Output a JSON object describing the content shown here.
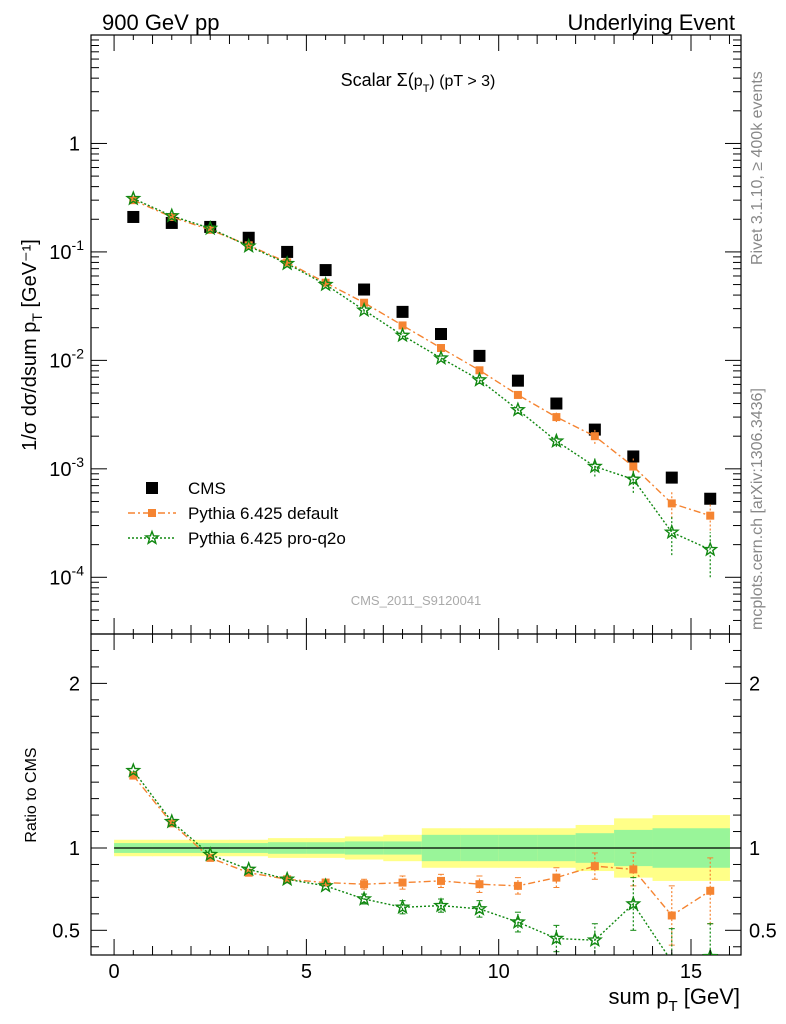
{
  "header": {
    "left": "900 GeV pp",
    "right": "Underlying Event"
  },
  "side_labels": {
    "rivet": "Rivet 3.1.10, ≥ 400k events",
    "mcplots": "mcplots.cern.ch [arXiv:1306.3436]"
  },
  "chart_data": [
    {
      "type": "scatter",
      "title": "Scalar Σ(p_T) (pT > 3)",
      "ylabel": "1/σ dσ/dsum p_T [GeV⁻¹]",
      "xlabel": "",
      "yscale": "log",
      "xlim": [
        -0.6,
        16.3
      ],
      "ylim": [
        3e-05,
        10
      ],
      "yticks_major": [
        0.0001,
        0.001,
        0.01,
        0.1,
        1
      ],
      "ytick_labels": [
        "10^-4",
        "10^-3",
        "10^-2",
        "10^-1",
        "1"
      ],
      "watermark": "CMS_2011_S9120041",
      "legend_position": "bottom-left",
      "x": [
        0.5,
        1.5,
        2.5,
        3.5,
        4.5,
        5.5,
        6.5,
        7.5,
        8.5,
        9.5,
        10.5,
        11.5,
        12.5,
        13.5,
        14.5,
        15.5
      ],
      "series": [
        {
          "name": "CMS",
          "color": "#000000",
          "marker": "square",
          "line": "none",
          "values": [
            0.21,
            0.185,
            0.17,
            0.135,
            0.1,
            0.068,
            0.045,
            0.028,
            0.0175,
            0.011,
            0.0065,
            0.004,
            0.0023,
            0.0013,
            0.00083,
            0.00053
          ]
        },
        {
          "name": "Pythia 6.425 default",
          "color": "#f58431",
          "marker": "square-small",
          "line": "dashdot",
          "values": [
            0.3,
            0.21,
            0.16,
            0.115,
            0.08,
            0.052,
            0.034,
            0.021,
            0.013,
            0.0081,
            0.0048,
            0.003,
            0.002,
            0.00105,
            0.00048,
            0.00037
          ],
          "errors": [
            0,
            0,
            0,
            0,
            0,
            0,
            0,
            0.001,
            0.0008,
            0.0005,
            0.0003,
            0.0003,
            0.0003,
            0.0002,
            0.00013,
            0.0001
          ]
        },
        {
          "name": "Pythia 6.425 pro-q2o",
          "color": "#118811",
          "marker": "star",
          "line": "dotted",
          "values": [
            0.31,
            0.215,
            0.165,
            0.113,
            0.078,
            0.05,
            0.029,
            0.017,
            0.0105,
            0.0066,
            0.0035,
            0.0018,
            0.00105,
            0.0008,
            0.00026,
            0.00018
          ],
          "errors": [
            0,
            0,
            0,
            0,
            0,
            0,
            0.001,
            0.0008,
            0.0006,
            0.0004,
            0.0003,
            0.0002,
            0.0002,
            0.0002,
            0.0001,
            8e-05
          ]
        }
      ]
    },
    {
      "type": "line",
      "ylabel": "Ratio to CMS",
      "xlabel": "sum p_T [GeV]",
      "xlim": [
        -0.6,
        16.3
      ],
      "ylim": [
        0.35,
        2.3
      ],
      "xticks": [
        0,
        5,
        10,
        15
      ],
      "yticks": [
        0.5,
        1,
        2
      ],
      "reference_line": 1,
      "x": [
        0.5,
        1.5,
        2.5,
        3.5,
        4.5,
        5.5,
        6.5,
        7.5,
        8.5,
        9.5,
        10.5,
        11.5,
        12.5,
        13.5,
        14.5,
        15.5
      ],
      "bands": {
        "bins_x": [
          0,
          1,
          2,
          3,
          4,
          5,
          6,
          7,
          8,
          9,
          10,
          11,
          12,
          13,
          14,
          15,
          16
        ],
        "stat_color": "#99f599",
        "total_color": "#ffff88",
        "stat_halfwidth": [
          0.03,
          0.03,
          0.03,
          0.03,
          0.035,
          0.035,
          0.04,
          0.04,
          0.08,
          0.08,
          0.08,
          0.08,
          0.09,
          0.11,
          0.12,
          0.12
        ],
        "total_halfwidth": [
          0.05,
          0.05,
          0.05,
          0.05,
          0.06,
          0.06,
          0.07,
          0.08,
          0.12,
          0.12,
          0.12,
          0.12,
          0.14,
          0.18,
          0.2,
          0.2
        ]
      },
      "series": [
        {
          "name": "Pythia 6.425 default",
          "color": "#f58431",
          "marker": "square-small",
          "line": "dashdot",
          "values": [
            1.44,
            1.15,
            0.94,
            0.85,
            0.81,
            0.79,
            0.78,
            0.79,
            0.8,
            0.78,
            0.77,
            0.82,
            0.89,
            0.87,
            0.59,
            0.74
          ],
          "errors": [
            0,
            0,
            0,
            0,
            0,
            0,
            0.03,
            0.04,
            0.04,
            0.05,
            0.05,
            0.06,
            0.08,
            0.1,
            0.18,
            0.2
          ]
        },
        {
          "name": "Pythia 6.425 pro-q2o",
          "color": "#118811",
          "marker": "star",
          "line": "dotted",
          "values": [
            1.47,
            1.16,
            0.96,
            0.87,
            0.81,
            0.77,
            0.69,
            0.64,
            0.65,
            0.63,
            0.55,
            0.45,
            0.44,
            0.66,
            0.31,
            0.34
          ],
          "errors": [
            0,
            0,
            0,
            0,
            0,
            0,
            0.03,
            0.04,
            0.04,
            0.05,
            0.06,
            0.08,
            0.1,
            0.16,
            0.2,
            0.2
          ]
        }
      ]
    }
  ]
}
